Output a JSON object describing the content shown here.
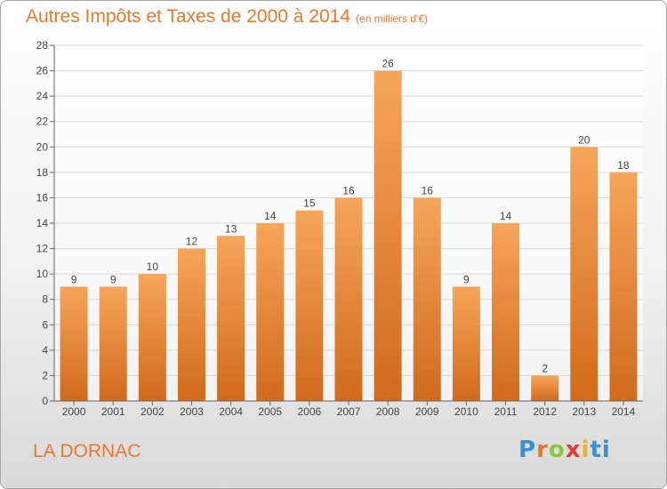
{
  "title": "Autres Impôts et Taxes de 2000 à 2014",
  "subtitle": "(en milliers d'€)",
  "place": "LA DORNAC",
  "logo": {
    "text": "Proxiti",
    "letters": [
      "P",
      "r",
      "o",
      "x",
      "i",
      "t",
      "i"
    ]
  },
  "colors": {
    "accent": "#e8782a",
    "bar_top": "#f6a55a",
    "bar_bottom": "#d16a1c",
    "grid": "#d8d8d8",
    "axis": "#666666"
  },
  "chart_data": {
    "type": "bar",
    "categories": [
      "2000",
      "2001",
      "2002",
      "2003",
      "2004",
      "2005",
      "2006",
      "2007",
      "2008",
      "2009",
      "2010",
      "2011",
      "2012",
      "2013",
      "2014"
    ],
    "values": [
      9,
      9,
      10,
      12,
      13,
      14,
      15,
      16,
      26,
      16,
      9,
      14,
      2,
      20,
      18
    ],
    "ylim": [
      0,
      28
    ],
    "yticks": [
      0,
      2,
      4,
      6,
      8,
      10,
      12,
      14,
      16,
      18,
      20,
      22,
      24,
      26,
      28
    ],
    "grid": true,
    "data_labels": true
  }
}
